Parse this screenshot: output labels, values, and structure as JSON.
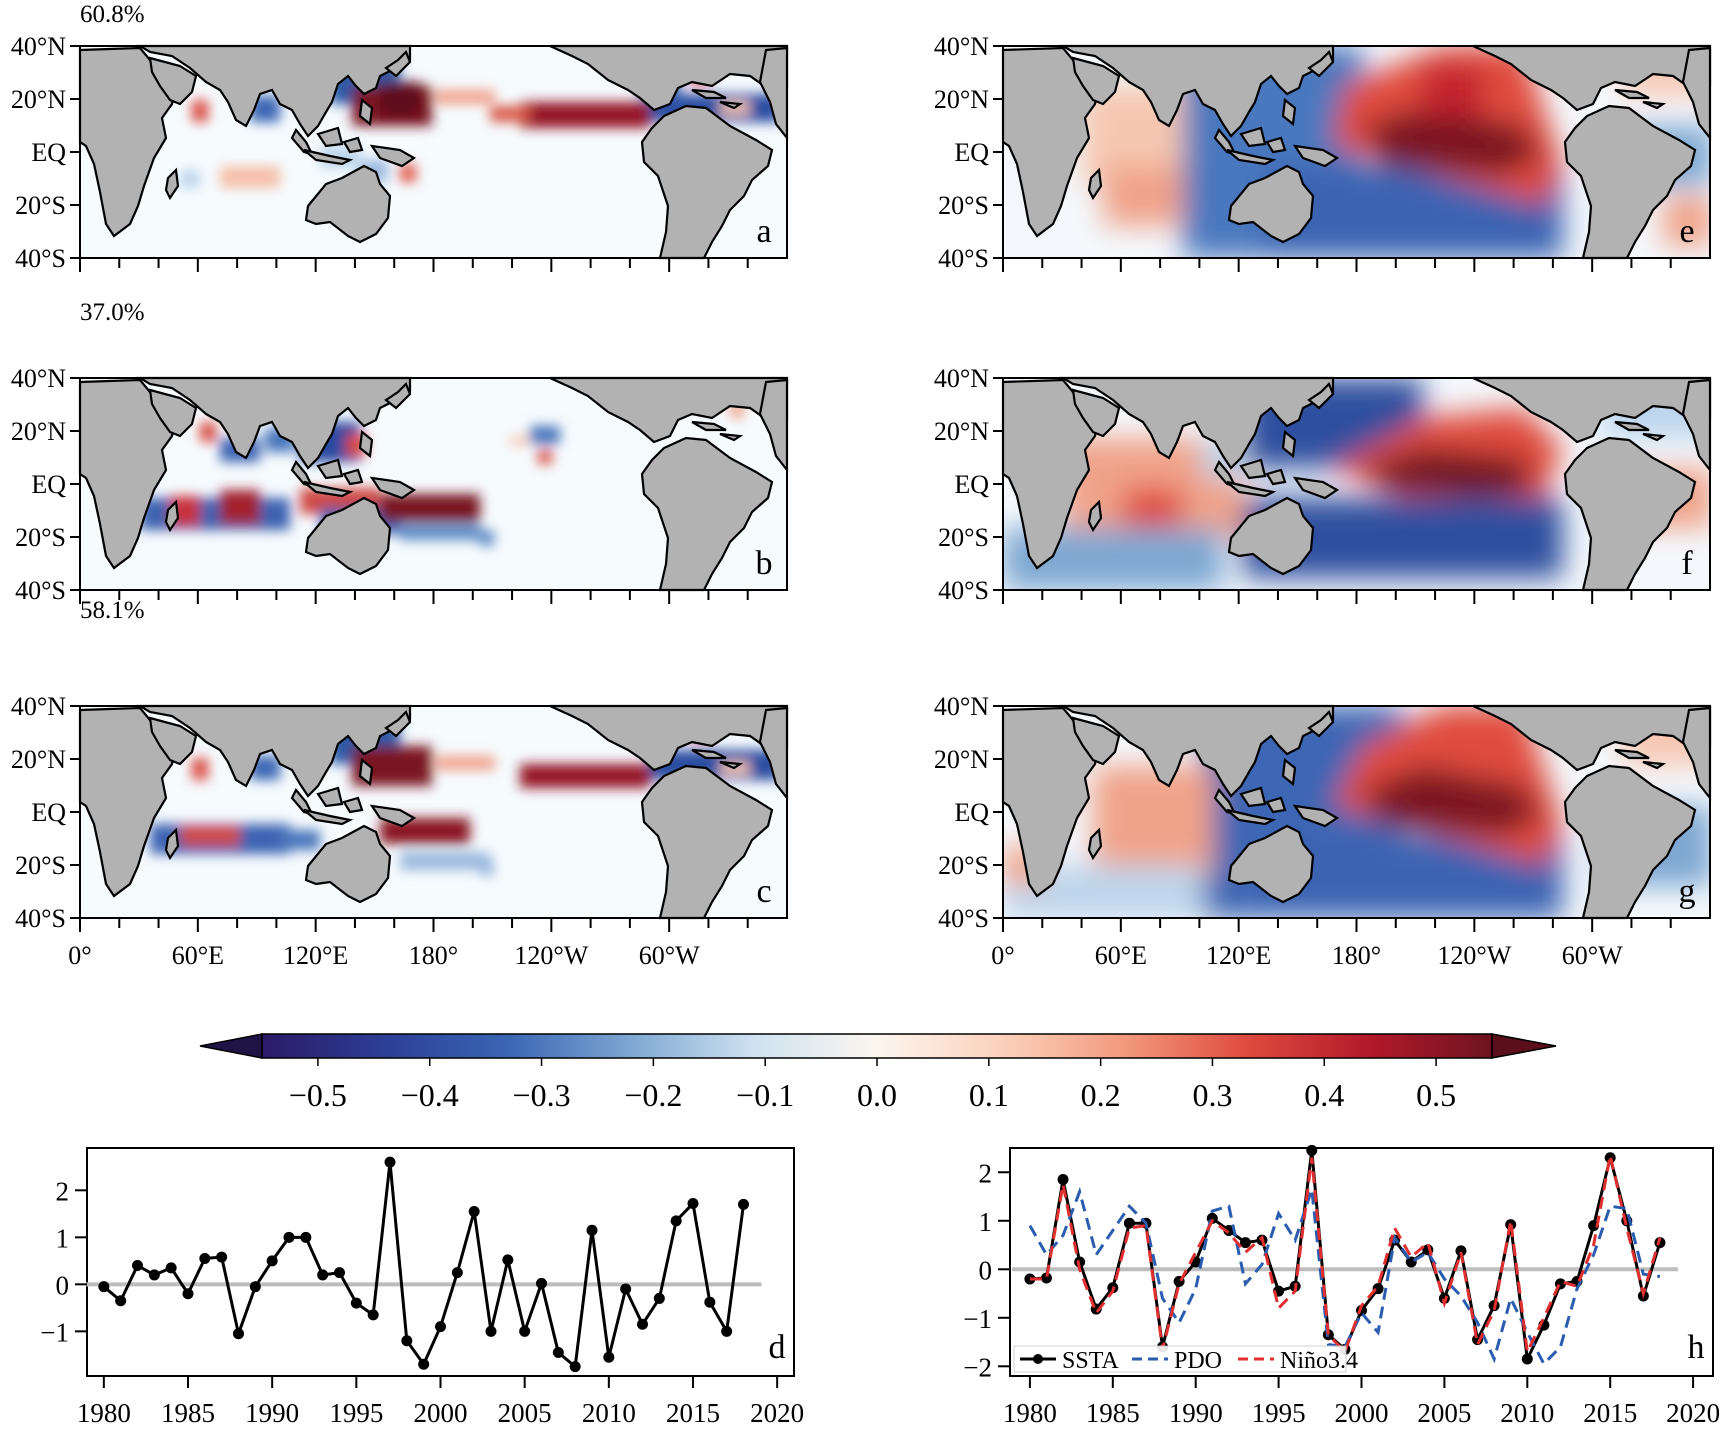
{
  "maps": {
    "lon_ticks": [
      "0°",
      "60°E",
      "120°E",
      "180°",
      "120°W",
      "60°W"
    ],
    "lat_ticks": [
      "40°N",
      "20°N",
      "EQ",
      "20°S",
      "40°S"
    ],
    "panels": [
      {
        "id": "a",
        "label": "a",
        "variance": "60.8%"
      },
      {
        "id": "b",
        "label": "b",
        "variance": "37.0%"
      },
      {
        "id": "c",
        "label": "c",
        "variance": "58.1%"
      },
      {
        "id": "e",
        "label": "e",
        "variance": ""
      },
      {
        "id": "f",
        "label": "f",
        "variance": ""
      },
      {
        "id": "g",
        "label": "g",
        "variance": ""
      }
    ]
  },
  "colorbar": {
    "ticks": [
      "−0.5",
      "−0.4",
      "−0.3",
      "−0.2",
      "−0.1",
      "0.0",
      "0.1",
      "0.2",
      "0.3",
      "0.4",
      "0.5"
    ],
    "colors": [
      "#2b1a66",
      "#2c3f96",
      "#3a66b4",
      "#7ea7d2",
      "#cfe2f1",
      "#fcf6ef",
      "#fbd2bd",
      "#f29a7e",
      "#e04b3e",
      "#b3192a",
      "#6e1320"
    ]
  },
  "chart_data": [
    {
      "type": "line",
      "panel": "d",
      "label": "d",
      "x": [
        1980,
        1981,
        1982,
        1983,
        1984,
        1985,
        1986,
        1987,
        1988,
        1989,
        1990,
        1991,
        1992,
        1993,
        1994,
        1995,
        1996,
        1997,
        1998,
        1999,
        2000,
        2001,
        2002,
        2003,
        2004,
        2005,
        2006,
        2007,
        2008,
        2009,
        2010,
        2011,
        2012,
        2013,
        2014,
        2015,
        2016,
        2017,
        2018
      ],
      "series": [
        {
          "values": [
            -0.05,
            -0.35,
            0.4,
            0.2,
            0.35,
            -0.2,
            0.55,
            0.58,
            -1.05,
            -0.05,
            0.5,
            1.0,
            1.0,
            0.2,
            0.25,
            -0.4,
            -0.65,
            2.6,
            -1.2,
            -1.7,
            -0.9,
            0.25,
            1.55,
            -1.0,
            0.52,
            -1.0,
            0.02,
            -1.45,
            -1.75,
            1.15,
            -1.55,
            -0.1,
            -0.85,
            -0.3,
            1.35,
            1.72,
            -0.38,
            -1.0,
            1.7
          ]
        }
      ],
      "xticks": [
        "1980",
        "1985",
        "1990",
        "1995",
        "2000",
        "2005",
        "2010",
        "2015",
        "2020"
      ],
      "yticks": [
        "−1",
        "0",
        "1",
        "2"
      ],
      "xlim": [
        1979,
        2021
      ],
      "ylim": [
        -1.95,
        2.9
      ]
    },
    {
      "type": "line",
      "panel": "h",
      "label": "h",
      "x": [
        1980,
        1981,
        1982,
        1983,
        1984,
        1985,
        1986,
        1987,
        1988,
        1989,
        1990,
        1991,
        1992,
        1993,
        1994,
        1995,
        1996,
        1997,
        1998,
        1999,
        2000,
        2001,
        2002,
        2003,
        2004,
        2005,
        2006,
        2007,
        2008,
        2009,
        2010,
        2011,
        2012,
        2013,
        2014,
        2015,
        2016,
        2017,
        2018
      ],
      "series": [
        {
          "name": "SSTA",
          "color": "#000000",
          "values": [
            -0.2,
            -0.18,
            1.85,
            0.15,
            -0.82,
            -0.38,
            0.95,
            0.95,
            -1.6,
            -0.25,
            0.15,
            1.05,
            0.8,
            0.55,
            0.6,
            -0.45,
            -0.35,
            2.45,
            -1.35,
            -1.65,
            -0.85,
            -0.4,
            0.6,
            0.15,
            0.4,
            -0.6,
            0.38,
            -1.45,
            -0.75,
            0.92,
            -1.85,
            -1.15,
            -0.3,
            -0.25,
            0.9,
            2.3,
            1.0,
            -0.55,
            0.55
          ]
        },
        {
          "name": "PDO",
          "color": "#2a5cb0",
          "values": [
            0.9,
            0.3,
            0.7,
            1.6,
            0.3,
            0.8,
            1.3,
            0.95,
            -0.6,
            -1.1,
            -0.4,
            1.2,
            1.3,
            -0.3,
            0.1,
            1.15,
            0.6,
            1.65,
            -1.55,
            -1.6,
            -0.9,
            -1.3,
            0.65,
            0.15,
            0.35,
            -0.2,
            -0.55,
            -1.1,
            -1.85,
            -0.6,
            -1.3,
            -1.95,
            -1.6,
            -0.4,
            0.3,
            1.3,
            1.25,
            -0.1,
            -0.15
          ]
        },
        {
          "name": "Niño3.4",
          "color": "#e02f2f",
          "values": [
            -0.2,
            -0.2,
            1.75,
            0.0,
            -0.9,
            -0.45,
            0.85,
            0.9,
            -1.65,
            -0.3,
            0.35,
            1.0,
            0.75,
            0.35,
            0.65,
            -0.8,
            -0.45,
            2.3,
            -1.35,
            -1.7,
            -0.75,
            -0.35,
            0.85,
            0.25,
            0.55,
            -0.7,
            0.35,
            -1.55,
            -0.85,
            1.0,
            -1.7,
            -1.0,
            -0.25,
            -0.35,
            0.5,
            2.35,
            0.85,
            -0.5,
            0.65
          ]
        }
      ],
      "legend": "lower-left",
      "xticks": [
        "1980",
        "1985",
        "1990",
        "1995",
        "2000",
        "2005",
        "2010",
        "2015",
        "2020"
      ],
      "yticks": [
        "−2",
        "−1",
        "0",
        "1",
        "2"
      ],
      "xlim": [
        1978.8,
        2021.2
      ],
      "ylim": [
        -2.2,
        2.5
      ]
    }
  ]
}
